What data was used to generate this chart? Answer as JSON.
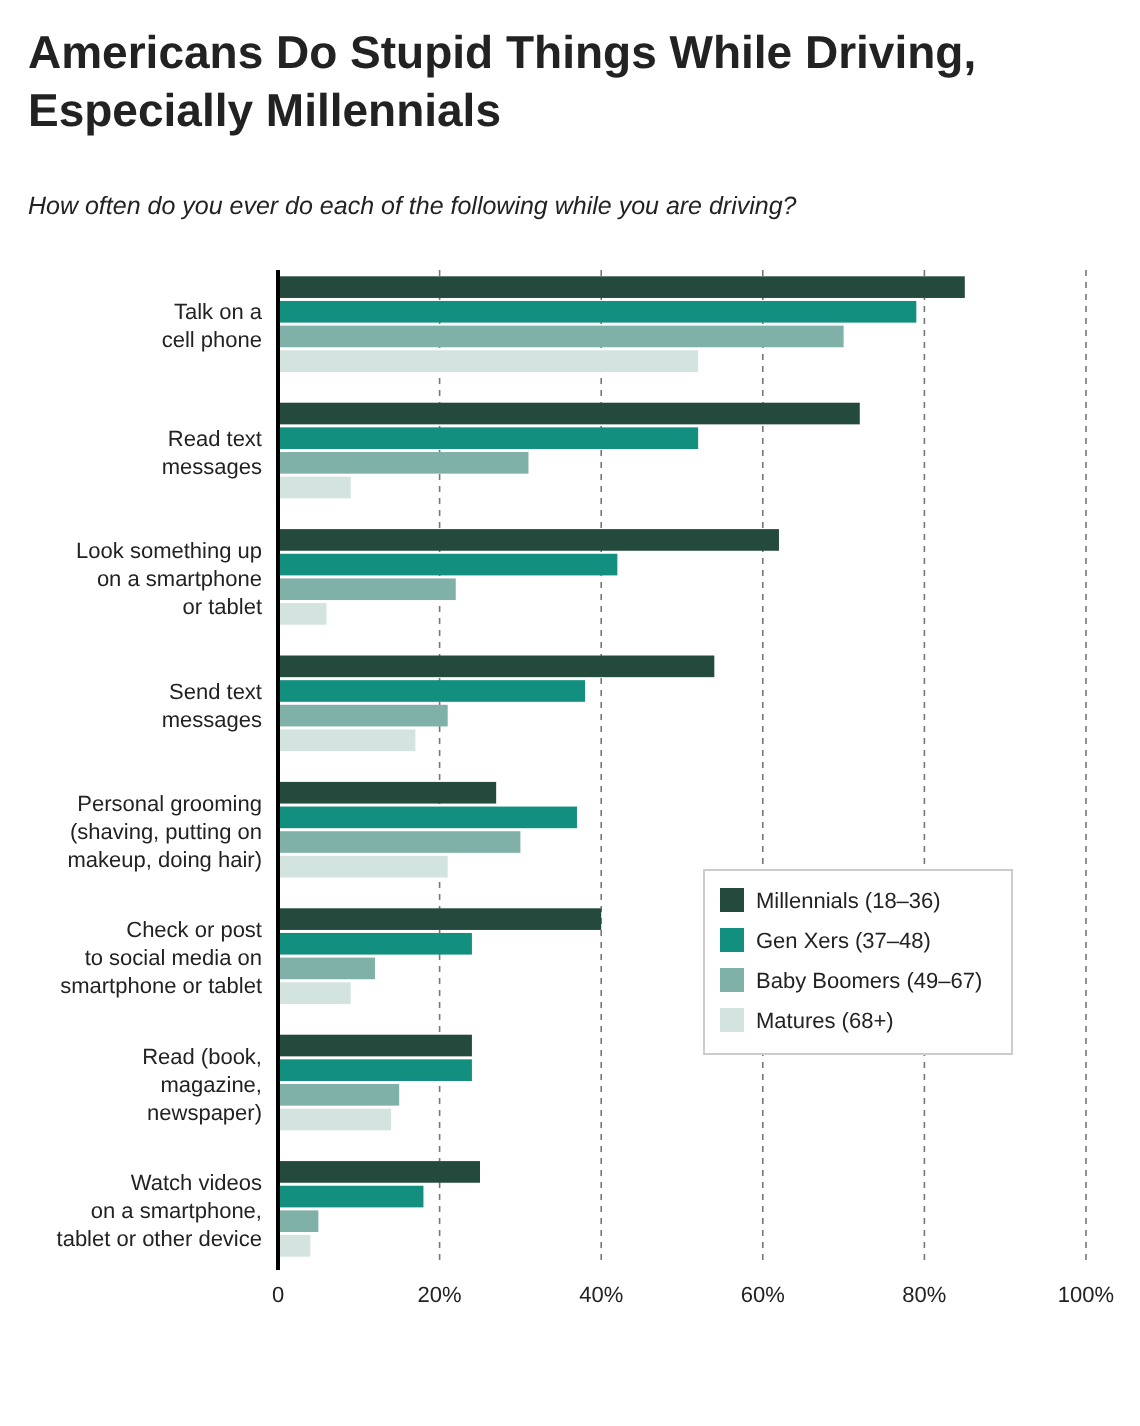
{
  "chart_data": {
    "type": "bar",
    "orientation": "horizontal",
    "title": "Americans Do Stupid Things While Driving,\nEspecially Millennials",
    "subtitle": "How often do you ever do each of the following while you are driving?",
    "categories": [
      "Talk on a\ncell phone",
      "Read text\nmessages",
      "Look something up\non a smartphone\nor tablet",
      "Send text\nmessages",
      "Personal grooming\n(shaving, putting on\nmakeup, doing hair)",
      "Check or post\nto social media on\nsmartphone or tablet",
      "Read (book,\nmagazine,\nnewspaper)",
      "Watch videos\non a smartphone,\ntablet or other device"
    ],
    "series": [
      {
        "name": "Millennials (18–36)",
        "color": "#234a3c",
        "values": [
          85,
          72,
          62,
          54,
          27,
          40,
          24,
          25
        ]
      },
      {
        "name": "Gen Xers (37–48)",
        "color": "#138f80",
        "values": [
          79,
          52,
          42,
          38,
          37,
          24,
          24,
          18
        ]
      },
      {
        "name": "Baby Boomers (49–67)",
        "color": "#80b1a8",
        "values": [
          70,
          31,
          22,
          21,
          30,
          12,
          15,
          5
        ]
      },
      {
        "name": "Matures (68+)",
        "color": "#d3e3df",
        "values": [
          52,
          9,
          6,
          17,
          21,
          9,
          14,
          4
        ]
      }
    ],
    "xlim": [
      0,
      100
    ],
    "xticks": [
      0,
      {
        "value": 20,
        "label": "20%"
      },
      {
        "value": 40,
        "label": "40%"
      },
      {
        "value": 60,
        "label": "60%"
      },
      {
        "value": 80,
        "label": "80%"
      },
      {
        "value": 100,
        "label": "100%"
      }
    ],
    "grid": "x",
    "legend": "right"
  }
}
